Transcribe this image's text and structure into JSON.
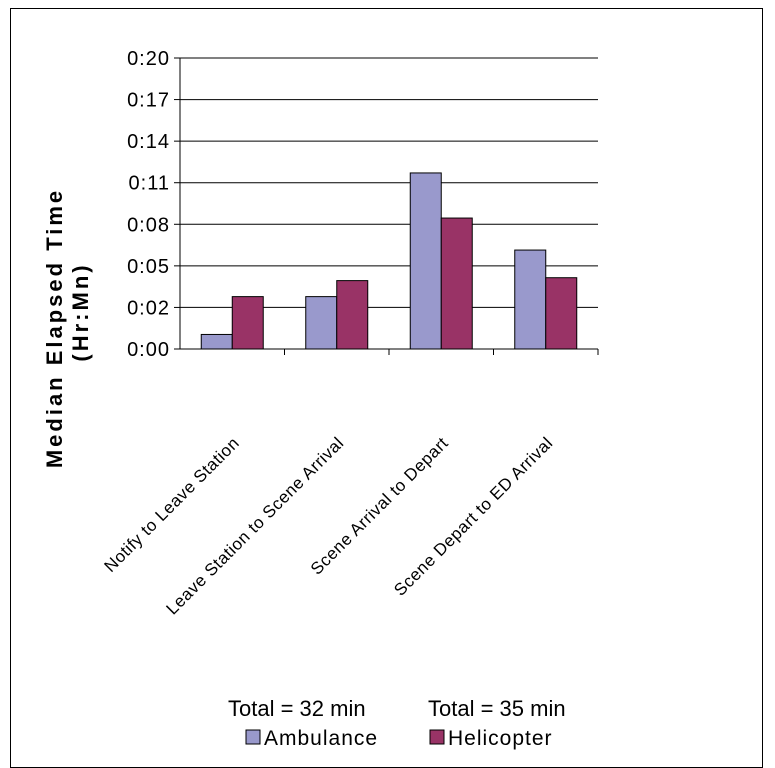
{
  "chart_data": {
    "type": "bar",
    "title": "",
    "ylabel_line1": "Median Elapsed Time",
    "ylabel_line2": "(Hr:Mn)",
    "xlabel": "",
    "yticks": [
      "0:00",
      "0:02",
      "0:05",
      "0:08",
      "0:11",
      "0:14",
      "0:17",
      "0:20"
    ],
    "ylim": [
      0,
      20
    ],
    "categories": [
      "Notify to Leave Station",
      "Leave Station to Scene Arrival",
      "Scene Arrival to Depart",
      "Scene Depart to ED Arrival"
    ],
    "series": [
      {
        "name": "Ambulance",
        "color": "#9999cc",
        "values": [
          1.0,
          3.6,
          12.1,
          6.8
        ]
      },
      {
        "name": "Helicopter",
        "color": "#993366",
        "values": [
          3.6,
          4.7,
          9.0,
          4.9
        ]
      }
    ],
    "annotations": [
      "Total = 32 min",
      "Total = 35 min"
    ],
    "grid": "horizontal",
    "legend_position": "bottom"
  }
}
